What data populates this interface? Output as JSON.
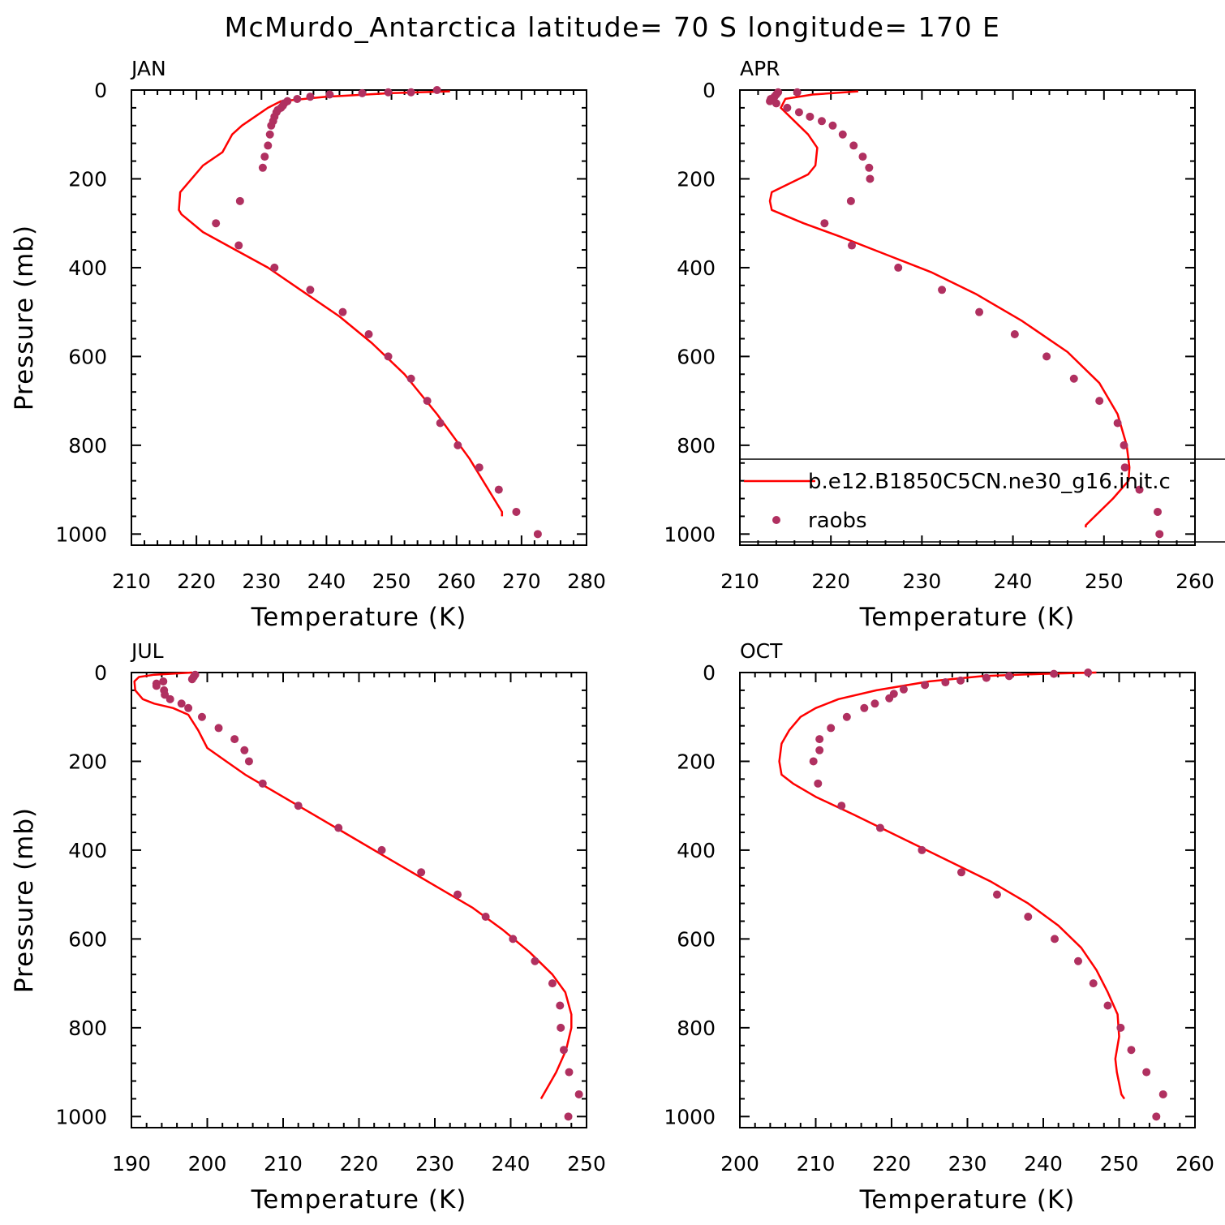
{
  "title": "McMurdo_Antarctica  latitude= 70 S longitude= 170 E",
  "colors": {
    "model": "#ff0000",
    "obs": "#b03060",
    "axis": "#000000"
  },
  "legend": {
    "model_label": "b.e12.B1850C5CN.ne30_g16.init.c",
    "obs_label": "raobs",
    "placement": "APR panel, lower area"
  },
  "chart_data": [
    {
      "type": "line",
      "panel": "JAN",
      "xlabel": "Temperature (K)",
      "ylabel": "Pressure (mb)",
      "xlim": [
        210,
        280
      ],
      "ylim": [
        1025,
        0
      ],
      "xticks": [
        "210",
        "220",
        "230",
        "240",
        "250",
        "260",
        "270",
        "280"
      ],
      "yticks": [
        "0",
        "200",
        "400",
        "600",
        "800",
        "1000"
      ],
      "series": [
        {
          "name": "b.e12.B1850C5CN.ne30_g16.init.c",
          "style": "line",
          "x": [
            259,
            250,
            240,
            233,
            231,
            229,
            227,
            225.5,
            224,
            221,
            217.5,
            217.3,
            217.7,
            221,
            226,
            231,
            236,
            242,
            247,
            252,
            257,
            262,
            267,
            267
          ],
          "y": [
            3,
            7,
            15,
            25,
            40,
            60,
            80,
            100,
            140,
            170,
            230,
            270,
            280,
            320,
            360,
            400,
            450,
            510,
            570,
            640,
            730,
            830,
            950,
            960
          ]
        },
        {
          "name": "raobs",
          "style": "scatter",
          "x": [
            257,
            253,
            249.5,
            245.5,
            240.5,
            237.5,
            235.5,
            234,
            233.5,
            233.3,
            233,
            232.5,
            232.3,
            232,
            231.8,
            231.5,
            231.3,
            231,
            230.5,
            230.2,
            226.7,
            223,
            226.5,
            232,
            237.5,
            242.5,
            246.5,
            249.5,
            253,
            255.5,
            257.5,
            260.2,
            263.5,
            266.5,
            269.2,
            272.5
          ],
          "y": [
            0,
            5,
            5,
            7,
            10,
            15,
            20,
            25,
            30,
            35,
            40,
            45,
            50,
            60,
            70,
            80,
            100,
            125,
            150,
            175,
            250,
            300,
            350,
            400,
            450,
            500,
            550,
            600,
            650,
            700,
            750,
            800,
            850,
            900,
            950,
            1000
          ]
        }
      ]
    },
    {
      "type": "line",
      "panel": "APR",
      "xlabel": "Temperature (K)",
      "ylabel": "",
      "xlim": [
        210,
        260
      ],
      "ylim": [
        1025,
        0
      ],
      "xticks": [
        "210",
        "220",
        "230",
        "240",
        "250",
        "260"
      ],
      "yticks": [
        "0",
        "200",
        "400",
        "600",
        "800",
        "1000"
      ],
      "series": [
        {
          "name": "b.e12.B1850C5CN.ne30_g16.init.c",
          "style": "line",
          "x": [
            223,
            218,
            215,
            214.5,
            216,
            217.5,
            218.5,
            218.3,
            217.5,
            213.5,
            213.3,
            213.5,
            217,
            221,
            226,
            231,
            236,
            241,
            246,
            249.5,
            251.5,
            252.5,
            252.8,
            252.7,
            251,
            249,
            248,
            248
          ],
          "y": [
            3,
            10,
            20,
            40,
            70,
            100,
            130,
            170,
            190,
            230,
            250,
            270,
            300,
            330,
            370,
            410,
            460,
            520,
            590,
            660,
            730,
            800,
            850,
            880,
            920,
            960,
            980,
            985
          ]
        },
        {
          "name": "raobs",
          "style": "scatter",
          "x": [
            216.3,
            214.2,
            214,
            213.8,
            213.4,
            213.3,
            214,
            215.2,
            216.5,
            217.7,
            219,
            220.2,
            221.3,
            222.5,
            223.5,
            224.2,
            224.3,
            222.2,
            219.3,
            222.3,
            227.4,
            232.2,
            236.3,
            240.2,
            243.7,
            246.7,
            249.5,
            251.5,
            252.2,
            252.3,
            253.9,
            255.9,
            256.1
          ],
          "y": [
            5,
            5,
            10,
            15,
            20,
            25,
            30,
            40,
            50,
            60,
            70,
            80,
            100,
            125,
            150,
            175,
            200,
            250,
            300,
            350,
            400,
            450,
            500,
            550,
            600,
            650,
            700,
            750,
            800,
            850,
            900,
            950,
            1000
          ]
        }
      ]
    },
    {
      "type": "line",
      "panel": "JUL",
      "xlabel": "Temperature (K)",
      "ylabel": "Pressure (mb)",
      "xlim": [
        190,
        250
      ],
      "ylim": [
        1025,
        0
      ],
      "xticks": [
        "190",
        "200",
        "210",
        "220",
        "230",
        "240",
        "250"
      ],
      "yticks": [
        "0",
        "200",
        "400",
        "600",
        "800",
        "1000"
      ],
      "series": [
        {
          "name": "b.e12.B1850C5CN.ne30_g16.init.c",
          "style": "line",
          "x": [
            198,
            193,
            191,
            190.4,
            190.5,
            191.5,
            193,
            195.5,
            197.5,
            198.8,
            200,
            202.5,
            205,
            208,
            212,
            218,
            224,
            230,
            235,
            239,
            242.5,
            245.5,
            247.2,
            248,
            248,
            247.3,
            246,
            245,
            244
          ],
          "y": [
            0,
            5,
            10,
            20,
            40,
            60,
            70,
            80,
            95,
            130,
            170,
            200,
            230,
            260,
            300,
            360,
            420,
            480,
            530,
            580,
            630,
            680,
            720,
            770,
            800,
            850,
            900,
            930,
            960
          ]
        },
        {
          "name": "raobs",
          "style": "scatter",
          "x": [
            198.4,
            198.2,
            198,
            194.2,
            193.3,
            193.3,
            194.3,
            194.4,
            195.1,
            196.6,
            197.5,
            199.3,
            201.5,
            203.6,
            204.9,
            205.5,
            207.3,
            212,
            217.3,
            223,
            228.2,
            233,
            236.7,
            240.3,
            243.2,
            245.5,
            246.5,
            246.6,
            247,
            247.7,
            249,
            247.6
          ],
          "y": [
            5,
            10,
            15,
            20,
            25,
            30,
            40,
            50,
            60,
            70,
            80,
            100,
            125,
            150,
            175,
            200,
            250,
            300,
            350,
            400,
            450,
            500,
            550,
            600,
            650,
            700,
            750,
            800,
            850,
            900,
            950,
            1000
          ]
        }
      ]
    },
    {
      "type": "line",
      "panel": "OCT",
      "xlabel": "Temperature (K)",
      "ylabel": "",
      "xlim": [
        200,
        260
      ],
      "ylim": [
        1025,
        0
      ],
      "xticks": [
        "200",
        "210",
        "220",
        "230",
        "240",
        "250",
        "260"
      ],
      "yticks": [
        "0",
        "200",
        "400",
        "600",
        "800",
        "1000"
      ],
      "series": [
        {
          "name": "b.e12.B1850C5CN.ne30_g16.init.c",
          "style": "line",
          "x": [
            247,
            240,
            232,
            225,
            218,
            213,
            210,
            208,
            206.5,
            205.5,
            205.2,
            205.5,
            207,
            210,
            215,
            221,
            227,
            233,
            238,
            242,
            245,
            247,
            248.5,
            249.8,
            250,
            249.5,
            249.7,
            250.3,
            250.7
          ],
          "y": [
            0,
            3,
            8,
            20,
            40,
            60,
            80,
            100,
            130,
            160,
            200,
            230,
            250,
            280,
            320,
            370,
            420,
            470,
            520,
            570,
            620,
            670,
            720,
            770,
            820,
            870,
            900,
            950,
            960
          ]
        },
        {
          "name": "raobs",
          "style": "scatter",
          "x": [
            245.9,
            241.4,
            235.5,
            232.5,
            229.1,
            227.1,
            224.4,
            221.6,
            220.3,
            219.7,
            217.8,
            216.4,
            214.1,
            212,
            210.5,
            210.5,
            209.7,
            210.3,
            213.4,
            218.5,
            224,
            229.2,
            233.9,
            238,
            241.5,
            244.6,
            246.6,
            248.5,
            250.2,
            251.6,
            253.6,
            255.8,
            254.9
          ],
          "y": [
            0,
            3,
            8,
            12,
            18,
            22,
            28,
            38,
            48,
            58,
            70,
            80,
            100,
            125,
            150,
            175,
            200,
            250,
            300,
            350,
            400,
            450,
            500,
            550,
            600,
            650,
            700,
            750,
            800,
            850,
            900,
            950,
            1000
          ]
        }
      ]
    }
  ]
}
